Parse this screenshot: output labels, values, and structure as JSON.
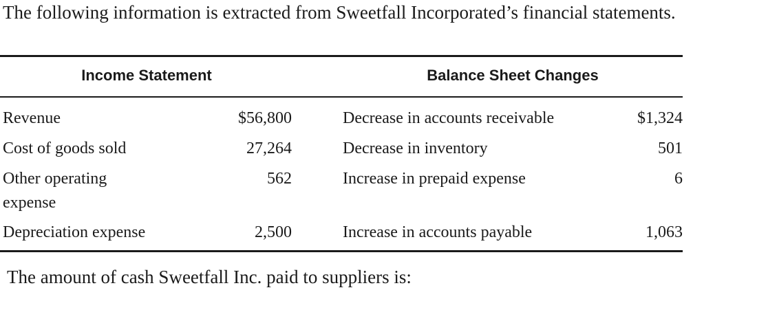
{
  "intro": "The following information is extracted from Sweetfall Incorporated’s financial statements.",
  "table": {
    "headers": [
      "Income Statement",
      "Balance Sheet Changes"
    ],
    "rows": [
      [
        "Revenue",
        "$56,800",
        "Decrease in accounts receivable",
        "$1,324"
      ],
      [
        "Cost of goods sold",
        "27,264",
        "Decrease in inventory",
        "501"
      ],
      [
        "Other operating expense",
        "562",
        "Increase in prepaid expense",
        "6"
      ],
      [
        "Depreciation expense",
        "2,500",
        "Increase in accounts payable",
        "1,063"
      ]
    ]
  },
  "question": "The amount of cash Sweetfall Inc. paid to suppliers is:"
}
